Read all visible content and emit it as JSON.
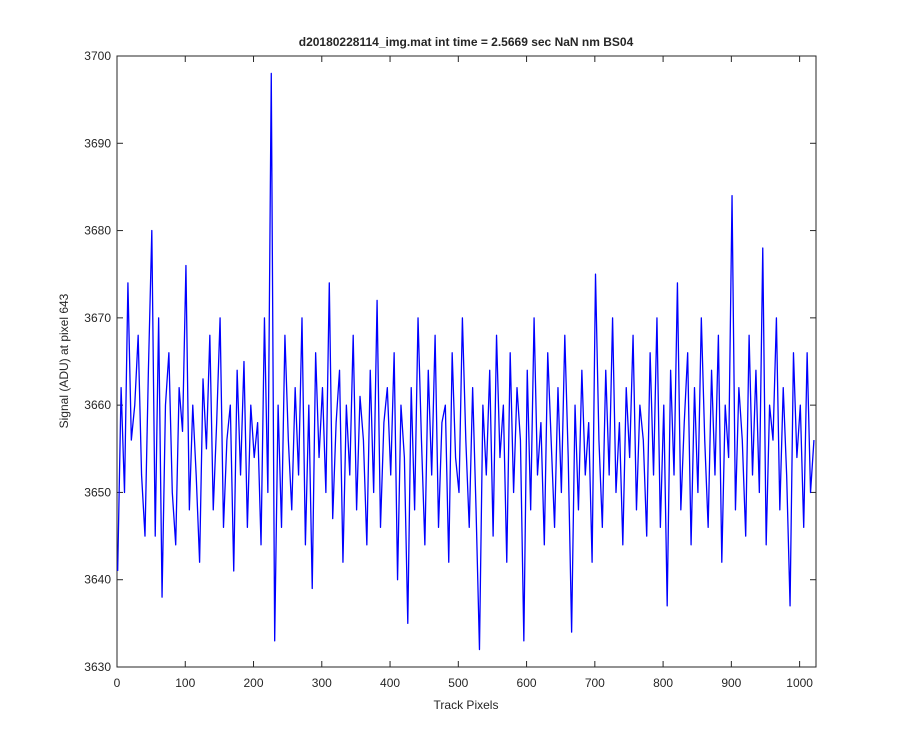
{
  "chart_data": {
    "type": "line",
    "title": "d20180228114_img.mat int time = 2.5669 sec  NaN nm BS04",
    "xlabel": "Track Pixels",
    "ylabel": "Signal (ADU) at pixel 643",
    "xlim": [
      0,
      1024
    ],
    "ylim": [
      3630,
      3700
    ],
    "xticks": [
      0,
      100,
      200,
      300,
      400,
      500,
      600,
      700,
      800,
      900,
      1000
    ],
    "yticks": [
      3630,
      3640,
      3650,
      3660,
      3670,
      3680,
      3690,
      3700
    ],
    "x": [
      1,
      6,
      11,
      16,
      21,
      26,
      31,
      36,
      41,
      46,
      51,
      56,
      61,
      66,
      71,
      76,
      81,
      86,
      91,
      96,
      101,
      106,
      111,
      116,
      121,
      126,
      131,
      136,
      141,
      146,
      151,
      156,
      161,
      166,
      171,
      176,
      181,
      186,
      191,
      196,
      201,
      206,
      211,
      216,
      221,
      226,
      231,
      236,
      241,
      246,
      251,
      256,
      261,
      266,
      271,
      276,
      281,
      286,
      291,
      296,
      301,
      306,
      311,
      316,
      321,
      326,
      331,
      336,
      341,
      346,
      351,
      356,
      361,
      366,
      371,
      376,
      381,
      386,
      391,
      396,
      401,
      406,
      411,
      416,
      421,
      426,
      431,
      436,
      441,
      446,
      451,
      456,
      461,
      466,
      471,
      476,
      481,
      486,
      491,
      496,
      501,
      506,
      511,
      516,
      521,
      526,
      531,
      536,
      541,
      546,
      551,
      556,
      561,
      566,
      571,
      576,
      581,
      586,
      591,
      596,
      601,
      606,
      611,
      616,
      621,
      626,
      631,
      636,
      641,
      646,
      651,
      656,
      661,
      666,
      671,
      676,
      681,
      686,
      691,
      696,
      701,
      706,
      711,
      716,
      721,
      726,
      731,
      736,
      741,
      746,
      751,
      756,
      761,
      766,
      771,
      776,
      781,
      786,
      791,
      796,
      801,
      806,
      811,
      816,
      821,
      826,
      831,
      836,
      841,
      846,
      851,
      856,
      861,
      866,
      871,
      876,
      881,
      886,
      891,
      896,
      901,
      906,
      911,
      916,
      921,
      926,
      931,
      936,
      941,
      946,
      951,
      956,
      961,
      966,
      971,
      976,
      981,
      986,
      991,
      996,
      1001,
      1006,
      1011,
      1016,
      1021
    ],
    "series": [
      {
        "color": "#0000ff",
        "values": [
          3641,
          3662,
          3650,
          3674,
          3656,
          3660,
          3668,
          3652,
          3645,
          3664,
          3680,
          3645,
          3670,
          3638,
          3660,
          3666,
          3650,
          3644,
          3662,
          3657,
          3676,
          3648,
          3660,
          3652,
          3642,
          3663,
          3655,
          3668,
          3648,
          3658,
          3670,
          3646,
          3656,
          3660,
          3641,
          3664,
          3652,
          3665,
          3646,
          3660,
          3654,
          3658,
          3644,
          3670,
          3650,
          3698,
          3633,
          3660,
          3646,
          3668,
          3656,
          3648,
          3662,
          3652,
          3670,
          3644,
          3660,
          3639,
          3666,
          3654,
          3662,
          3650,
          3674,
          3647,
          3658,
          3664,
          3642,
          3660,
          3652,
          3668,
          3648,
          3661,
          3656,
          3644,
          3664,
          3650,
          3672,
          3646,
          3658,
          3662,
          3652,
          3666,
          3640,
          3660,
          3654,
          3635,
          3662,
          3648,
          3670,
          3656,
          3644,
          3664,
          3652,
          3668,
          3646,
          3658,
          3660,
          3642,
          3666,
          3654,
          3650,
          3670,
          3656,
          3646,
          3662,
          3648,
          3632,
          3660,
          3652,
          3664,
          3645,
          3668,
          3654,
          3660,
          3642,
          3666,
          3650,
          3662,
          3656,
          3633,
          3664,
          3648,
          3670,
          3652,
          3658,
          3644,
          3666,
          3656,
          3646,
          3662,
          3650,
          3668,
          3654,
          3634,
          3660,
          3648,
          3664,
          3652,
          3658,
          3642,
          3675,
          3656,
          3646,
          3664,
          3652,
          3670,
          3650,
          3658,
          3644,
          3662,
          3654,
          3668,
          3648,
          3660,
          3656,
          3645,
          3666,
          3652,
          3670,
          3646,
          3660,
          3637,
          3664,
          3652,
          3674,
          3648,
          3658,
          3666,
          3644,
          3662,
          3650,
          3670,
          3656,
          3646,
          3664,
          3652,
          3668,
          3642,
          3660,
          3654,
          3684,
          3648,
          3662,
          3656,
          3645,
          3668,
          3652,
          3664,
          3650,
          3678,
          3644,
          3660,
          3656,
          3670,
          3648,
          3662,
          3652,
          3637,
          3666,
          3654,
          3660,
          3646,
          3666,
          3650,
          3656
        ]
      }
    ]
  }
}
